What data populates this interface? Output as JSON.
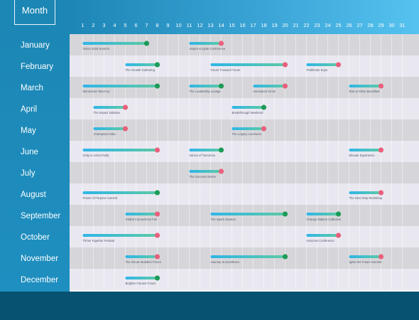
{
  "sidebar": {
    "title": "Month"
  },
  "colors": {
    "row_dark": "#d6d6da",
    "row_light": "#e9e8f1",
    "bar_start": "#2eb6e8",
    "bar_end": "#5cc9a5",
    "end_green": "#1e9a57",
    "end_pink": "#e8607d"
  },
  "chart_data": {
    "type": "timeline",
    "xlabel": "",
    "ylabel": "Month",
    "xlim": [
      1,
      31
    ],
    "days": [
      1,
      2,
      3,
      4,
      5,
      6,
      7,
      8,
      9,
      10,
      11,
      12,
      13,
      14,
      15,
      16,
      17,
      18,
      19,
      20,
      21,
      22,
      23,
      24,
      25,
      26,
      27,
      28,
      29,
      30,
      31
    ],
    "months": [
      "January",
      "February",
      "March",
      "April",
      "May",
      "June",
      "July",
      "August",
      "September",
      "October",
      "November",
      "December"
    ],
    "events": [
      {
        "month": "January",
        "label": "Vision 2025 Summit",
        "start": 1,
        "end": 7,
        "end_marker": "green"
      },
      {
        "month": "January",
        "label": "Inspire & Ignite Conference",
        "start": 11,
        "end": 14,
        "end_marker": "pink"
      },
      {
        "month": "February",
        "label": "The Growth Gathering",
        "start": 5,
        "end": 8,
        "end_marker": "green"
      },
      {
        "month": "February",
        "label": "Future Forward Forum",
        "start": 13,
        "end": 20,
        "end_marker": "pink"
      },
      {
        "month": "February",
        "label": "Pathfinder Expo",
        "start": 22,
        "end": 25,
        "end_marker": "pink"
      },
      {
        "month": "March",
        "label": "Momentum Meet-Up",
        "start": 1,
        "end": 8,
        "end_marker": "green"
      },
      {
        "month": "March",
        "label": "The Leadership Lounge",
        "start": 11,
        "end": 14,
        "end_marker": "green"
      },
      {
        "month": "March",
        "label": "Innovators Circle",
        "start": 17,
        "end": 20,
        "end_marker": "pink"
      },
      {
        "month": "March",
        "label": "Rise & Shine Breakfast",
        "start": 26,
        "end": 29,
        "end_marker": "pink"
      },
      {
        "month": "April",
        "label": "The Impact Initiative",
        "start": 2,
        "end": 5,
        "end_marker": "pink"
      },
      {
        "month": "April",
        "label": "Breakthrough Weekend",
        "start": 15,
        "end": 18,
        "end_marker": "green"
      },
      {
        "month": "May",
        "label": "Champions Gala",
        "start": 2,
        "end": 5,
        "end_marker": "pink"
      },
      {
        "month": "May",
        "label": "The Legacy Luncheon",
        "start": 15,
        "end": 18,
        "end_marker": "pink"
      },
      {
        "month": "June",
        "label": "Unity in Action Rally",
        "start": 1,
        "end": 8,
        "end_marker": "pink"
      },
      {
        "month": "June",
        "label": "Voices of Tomorrow",
        "start": 11,
        "end": 14,
        "end_marker": "green"
      },
      {
        "month": "June",
        "label": "Elevate Experience",
        "start": 26,
        "end": 29,
        "end_marker": "pink"
      },
      {
        "month": "July",
        "label": "The Success Series",
        "start": 11,
        "end": 14,
        "end_marker": "pink"
      },
      {
        "month": "August",
        "label": "Power of Purpose Summit",
        "start": 1,
        "end": 8,
        "end_marker": "green"
      },
      {
        "month": "August",
        "label": "The Next Step Workshop",
        "start": 26,
        "end": 29,
        "end_marker": "pink"
      },
      {
        "month": "September",
        "label": "Global Connections Fair",
        "start": 5,
        "end": 8,
        "end_marker": "pink"
      },
      {
        "month": "September",
        "label": "The Spark Session",
        "start": 13,
        "end": 20,
        "end_marker": "green"
      },
      {
        "month": "September",
        "label": "Change Makers Collective",
        "start": 22,
        "end": 25,
        "end_marker": "green"
      },
      {
        "month": "October",
        "label": "Thrive Together Festival",
        "start": 1,
        "end": 8,
        "end_marker": "pink"
      },
      {
        "month": "October",
        "label": "Horizons Conference",
        "start": 22,
        "end": 25,
        "end_marker": "pink"
      },
      {
        "month": "November",
        "label": "The Dream Builders Forum",
        "start": 5,
        "end": 8,
        "end_marker": "pink"
      },
      {
        "month": "November",
        "label": "Journey to Excellence",
        "start": 13,
        "end": 20,
        "end_marker": "green"
      },
      {
        "month": "November",
        "label": "Ignite the Future Summit",
        "start": 26,
        "end": 29,
        "end_marker": "pink"
      },
      {
        "month": "December",
        "label": "Brighter Futures Forum",
        "start": 5,
        "end": 8,
        "end_marker": "green"
      }
    ]
  }
}
